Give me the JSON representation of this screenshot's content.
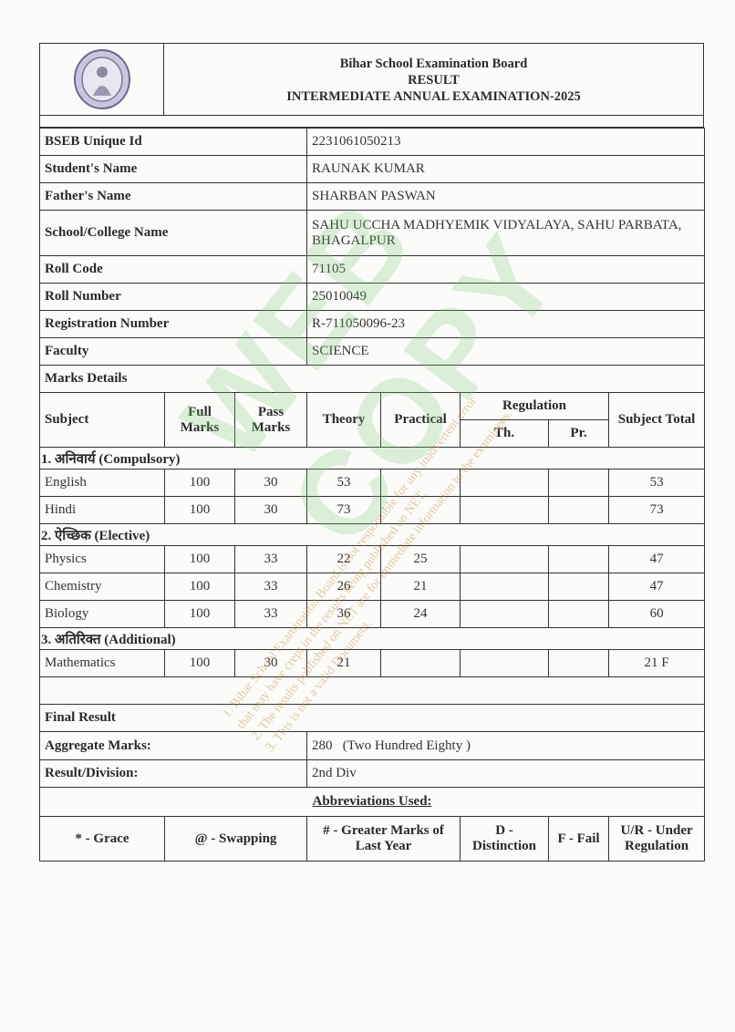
{
  "header": {
    "board": "Bihar School Examination Board",
    "result": "RESULT",
    "exam": "INTERMEDIATE ANNUAL EXAMINATION-2025",
    "logo": "bseb-seal-logo"
  },
  "student": {
    "rows": [
      {
        "label": "BSEB Unique Id",
        "value": "2231061050213"
      },
      {
        "label": "Student's Name",
        "value": "RAUNAK KUMAR"
      },
      {
        "label": "Father's Name",
        "value": "SHARBAN PASWAN"
      },
      {
        "label": "School/College Name",
        "value": "SAHU UCCHA MADHYEMIK VIDYALAYA, SAHU PARBATA, BHAGALPUR"
      },
      {
        "label": "Roll Code",
        "value": "71105"
      },
      {
        "label": "Roll Number",
        "value": "25010049"
      },
      {
        "label": "Registration Number",
        "value": "R-711050096-23"
      },
      {
        "label": "Faculty",
        "value": "SCIENCE"
      }
    ]
  },
  "marks": {
    "title": "Marks Details",
    "headers": {
      "subject": "Subject",
      "full": "Full Marks",
      "pass": "Pass Marks",
      "theory": "Theory",
      "practical": "Practical",
      "regulation": "Regulation",
      "th": "Th.",
      "pr": "Pr.",
      "total": "Subject Total"
    },
    "sections": [
      {
        "title": "1. अनिवार्य (Compulsory)",
        "subjects": [
          {
            "name": "English",
            "full": "100",
            "pass": "30",
            "theory": "53",
            "practical": "",
            "th": "",
            "pr": "",
            "total": "53"
          },
          {
            "name": "Hindi",
            "full": "100",
            "pass": "30",
            "theory": "73",
            "practical": "",
            "th": "",
            "pr": "",
            "total": "73"
          }
        ]
      },
      {
        "title": "2. ऐच्छिक (Elective)",
        "subjects": [
          {
            "name": "Physics",
            "full": "100",
            "pass": "33",
            "theory": "22",
            "practical": "25",
            "th": "",
            "pr": "",
            "total": "47"
          },
          {
            "name": "Chemistry",
            "full": "100",
            "pass": "33",
            "theory": "26",
            "practical": "21",
            "th": "",
            "pr": "",
            "total": "47"
          },
          {
            "name": "Biology",
            "full": "100",
            "pass": "33",
            "theory": "36",
            "practical": "24",
            "th": "",
            "pr": "",
            "total": "60"
          }
        ]
      },
      {
        "title": "3. अतिरिक्त (Additional)",
        "subjects": [
          {
            "name": "Mathematics",
            "full": "100",
            "pass": "30",
            "theory": "21",
            "practical": "",
            "th": "",
            "pr": "",
            "total": "21 F"
          }
        ]
      }
    ]
  },
  "final": {
    "title": "Final Result",
    "aggregate_label": "Aggregate Marks:",
    "aggregate_value": "280   (Two Hundred Eighty )",
    "division_label": "Result/Division:",
    "division_value": "2nd Div"
  },
  "abbreviations": {
    "title": "Abbreviations Used:",
    "items": [
      "* - Grace",
      "@ - Swapping",
      "# - Greater Marks of Last Year",
      "D - Distinction",
      "F - Fail",
      "U/R - Under Regulation"
    ]
  },
  "watermark": {
    "big": "WEB COPY",
    "lines": [
      "1. Bihar School Examination Board is not responsible for any inadvertent error",
      "that may have crept in the results being published on NET.",
      "2. The results published on NET are for immediate information to the examinees.",
      "3. This is not a valid Document."
    ]
  }
}
